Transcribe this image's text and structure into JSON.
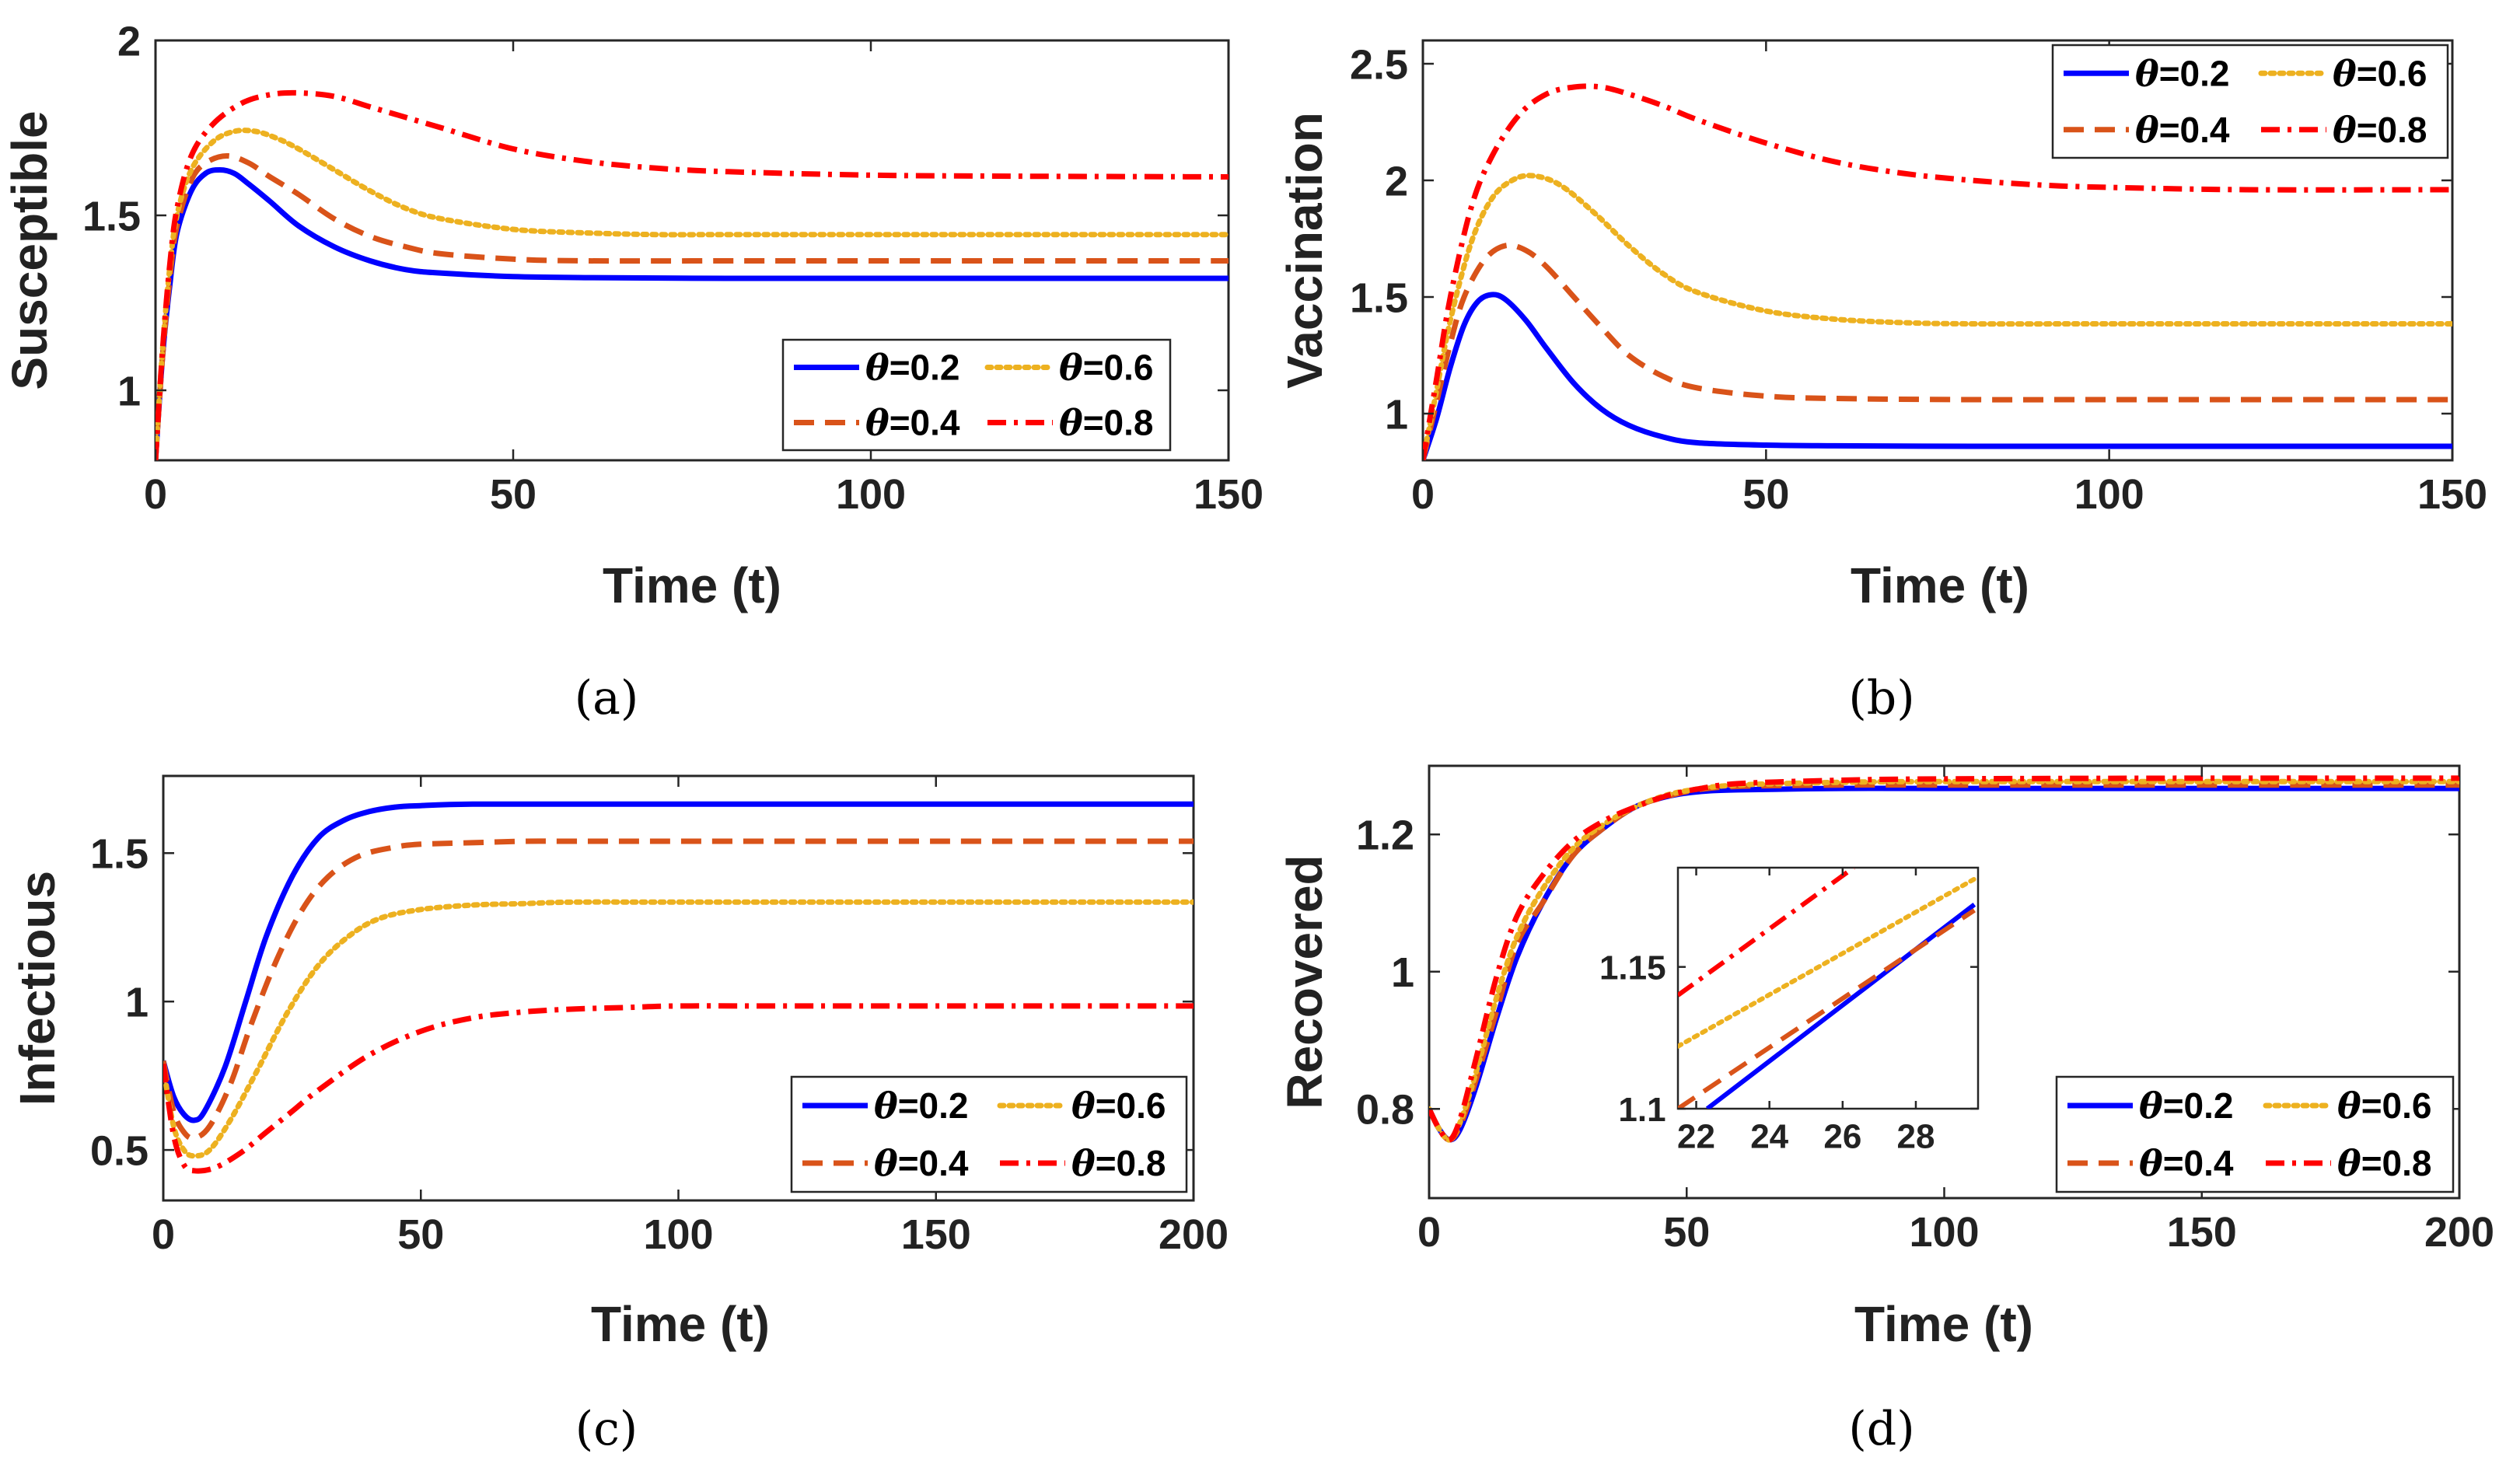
{
  "colors": {
    "0.2": "#0000ff",
    "0.4": "#d95319",
    "0.6": "#edb120",
    "0.8": "#ff0000",
    "axis": "#262626",
    "background": "#ffffff"
  },
  "legend": {
    "symbol": "θ",
    "entries": [
      {
        "key": "0.2",
        "label": "=0.2",
        "style": "solid"
      },
      {
        "key": "0.6",
        "label": "=0.6",
        "style": "dotted"
      },
      {
        "key": "0.4",
        "label": "=0.4",
        "style": "dashed"
      },
      {
        "key": "0.8",
        "label": "=0.8",
        "style": "dashdot"
      }
    ]
  },
  "chart_data": [
    {
      "id": "a",
      "type": "line",
      "caption": "(a)",
      "xlabel": "Time (t)",
      "ylabel": "Susceptible",
      "xlim": [
        0,
        150
      ],
      "ylim": [
        0.8,
        2.0
      ],
      "xticks": [
        0,
        50,
        100,
        150
      ],
      "yticks": [
        1,
        1.5,
        2
      ],
      "ytick_labels": [
        "1",
        "1.5",
        "2"
      ],
      "legend_position": "bottom-right",
      "series": [
        {
          "name": "θ=0.2",
          "key": "0.2",
          "style": "solid",
          "x": [
            0,
            1,
            2,
            3,
            5,
            7,
            9,
            11,
            13,
            16,
            20,
            25,
            30,
            35,
            40,
            50,
            60,
            80,
            100,
            150
          ],
          "y": [
            0.8,
            1.1,
            1.3,
            1.45,
            1.57,
            1.62,
            1.63,
            1.62,
            1.59,
            1.54,
            1.47,
            1.41,
            1.37,
            1.345,
            1.335,
            1.325,
            1.322,
            1.32,
            1.32,
            1.32
          ]
        },
        {
          "name": "θ=0.4",
          "key": "0.4",
          "style": "dashed",
          "x": [
            0,
            1,
            2,
            3,
            5,
            7,
            10,
            13,
            16,
            20,
            25,
            30,
            35,
            40,
            50,
            60,
            80,
            100,
            150
          ],
          "y": [
            0.8,
            1.1,
            1.32,
            1.47,
            1.6,
            1.65,
            1.67,
            1.65,
            1.61,
            1.56,
            1.49,
            1.44,
            1.41,
            1.39,
            1.375,
            1.37,
            1.37,
            1.37,
            1.37
          ]
        },
        {
          "name": "θ=0.6",
          "key": "0.6",
          "style": "dotted",
          "x": [
            0,
            1,
            2,
            3,
            5,
            8,
            11,
            14,
            17,
            20,
            25,
            30,
            35,
            40,
            50,
            60,
            70,
            80,
            100,
            150
          ],
          "y": [
            0.8,
            1.12,
            1.35,
            1.5,
            1.63,
            1.71,
            1.74,
            1.74,
            1.72,
            1.69,
            1.63,
            1.57,
            1.52,
            1.49,
            1.46,
            1.45,
            1.445,
            1.445,
            1.445,
            1.445
          ]
        },
        {
          "name": "θ=0.8",
          "key": "0.8",
          "style": "dashdot",
          "x": [
            0,
            1,
            2,
            3,
            5,
            8,
            12,
            16,
            20,
            25,
            30,
            35,
            40,
            50,
            60,
            70,
            80,
            100,
            120,
            150
          ],
          "y": [
            0.8,
            1.12,
            1.36,
            1.52,
            1.67,
            1.76,
            1.82,
            1.845,
            1.85,
            1.84,
            1.81,
            1.78,
            1.75,
            1.69,
            1.655,
            1.635,
            1.625,
            1.615,
            1.612,
            1.61
          ]
        }
      ]
    },
    {
      "id": "b",
      "type": "line",
      "caption": "(b)",
      "xlabel": "Time (t)",
      "ylabel": "Vaccination",
      "xlim": [
        0,
        150
      ],
      "ylim": [
        0.8,
        2.6
      ],
      "xticks": [
        0,
        50,
        100,
        150
      ],
      "yticks": [
        1,
        1.5,
        2,
        2.5
      ],
      "ytick_labels": [
        "1",
        "1.5",
        "2",
        "2.5"
      ],
      "legend_position": "top-right",
      "series": [
        {
          "name": "θ=0.2",
          "key": "0.2",
          "style": "solid",
          "x": [
            0,
            2,
            4,
            6,
            8,
            10,
            12,
            15,
            18,
            22,
            26,
            30,
            35,
            40,
            50,
            60,
            80,
            100,
            150
          ],
          "y": [
            0.8,
            0.98,
            1.2,
            1.38,
            1.48,
            1.51,
            1.49,
            1.4,
            1.28,
            1.13,
            1.02,
            0.95,
            0.9,
            0.875,
            0.865,
            0.862,
            0.86,
            0.86,
            0.86
          ]
        },
        {
          "name": "θ=0.4",
          "key": "0.4",
          "style": "dashed",
          "x": [
            0,
            2,
            4,
            6,
            9,
            12,
            15,
            18,
            22,
            26,
            30,
            35,
            40,
            50,
            60,
            80,
            100,
            150
          ],
          "y": [
            0.8,
            1.05,
            1.3,
            1.5,
            1.66,
            1.72,
            1.7,
            1.63,
            1.5,
            1.37,
            1.25,
            1.16,
            1.11,
            1.075,
            1.065,
            1.06,
            1.06,
            1.06
          ]
        },
        {
          "name": "θ=0.6",
          "key": "0.6",
          "style": "dotted",
          "x": [
            0,
            2,
            4,
            7,
            10,
            13,
            16,
            20,
            25,
            30,
            35,
            40,
            50,
            60,
            70,
            80,
            100,
            150
          ],
          "y": [
            0.8,
            1.1,
            1.4,
            1.73,
            1.92,
            2.0,
            2.02,
            1.98,
            1.86,
            1.72,
            1.6,
            1.52,
            1.44,
            1.405,
            1.39,
            1.385,
            1.385,
            1.385
          ]
        },
        {
          "name": "θ=0.8",
          "key": "0.8",
          "style": "dashdot",
          "x": [
            0,
            2,
            4,
            7,
            10,
            14,
            18,
            22,
            26,
            30,
            35,
            40,
            50,
            60,
            70,
            80,
            90,
            100,
            120,
            150
          ],
          "y": [
            0.8,
            1.15,
            1.5,
            1.88,
            2.1,
            2.28,
            2.37,
            2.4,
            2.4,
            2.37,
            2.32,
            2.26,
            2.16,
            2.08,
            2.03,
            2.0,
            1.98,
            1.97,
            1.96,
            1.96
          ]
        }
      ]
    },
    {
      "id": "c",
      "type": "line",
      "caption": "(c)",
      "xlabel": "Time (t)",
      "ylabel": "Infectious",
      "xlim": [
        0,
        200
      ],
      "ylim": [
        0.33,
        1.76
      ],
      "xticks": [
        0,
        50,
        100,
        150,
        200
      ],
      "yticks": [
        0.5,
        1,
        1.5
      ],
      "ytick_labels": [
        "0.5",
        "1",
        "1.5"
      ],
      "legend_position": "bottom-right",
      "series": [
        {
          "name": "θ=0.2",
          "key": "0.2",
          "style": "solid",
          "x": [
            0,
            2,
            4,
            6,
            8,
            12,
            16,
            20,
            25,
            30,
            35,
            40,
            45,
            50,
            60,
            80,
            100,
            150,
            200
          ],
          "y": [
            0.8,
            0.68,
            0.62,
            0.6,
            0.63,
            0.78,
            1.0,
            1.22,
            1.42,
            1.55,
            1.61,
            1.64,
            1.655,
            1.66,
            1.665,
            1.665,
            1.665,
            1.665,
            1.665
          ]
        },
        {
          "name": "θ=0.4",
          "key": "0.4",
          "style": "dashed",
          "x": [
            0,
            2,
            4,
            6,
            9,
            13,
            17,
            22,
            27,
            32,
            38,
            45,
            50,
            60,
            70,
            80,
            100,
            150,
            200
          ],
          "y": [
            0.8,
            0.63,
            0.56,
            0.54,
            0.58,
            0.72,
            0.92,
            1.14,
            1.31,
            1.42,
            1.49,
            1.52,
            1.53,
            1.535,
            1.54,
            1.54,
            1.54,
            1.54,
            1.54
          ]
        },
        {
          "name": "θ=0.6",
          "key": "0.6",
          "style": "dotted",
          "x": [
            0,
            2,
            4,
            6,
            9,
            13,
            18,
            24,
            30,
            36,
            42,
            50,
            60,
            70,
            80,
            100,
            150,
            200
          ],
          "y": [
            0.78,
            0.58,
            0.5,
            0.48,
            0.5,
            0.6,
            0.76,
            0.96,
            1.12,
            1.22,
            1.28,
            1.31,
            1.325,
            1.33,
            1.335,
            1.335,
            1.335,
            1.335
          ]
        },
        {
          "name": "θ=0.8",
          "key": "0.8",
          "style": "dashdot",
          "x": [
            0,
            2,
            4,
            6,
            10,
            15,
            20,
            25,
            30,
            40,
            50,
            60,
            70,
            80,
            90,
            100,
            120,
            150,
            200
          ],
          "y": [
            0.79,
            0.55,
            0.45,
            0.43,
            0.44,
            0.49,
            0.56,
            0.63,
            0.7,
            0.82,
            0.9,
            0.945,
            0.965,
            0.975,
            0.98,
            0.985,
            0.985,
            0.985,
            0.985
          ]
        }
      ]
    },
    {
      "id": "d",
      "type": "line",
      "caption": "(d)",
      "xlabel": "Time (t)",
      "ylabel": "Recovered",
      "xlim": [
        0,
        200
      ],
      "ylim": [
        0.67,
        1.3
      ],
      "xticks": [
        0,
        50,
        100,
        150,
        200
      ],
      "yticks": [
        0.8,
        1,
        1.2
      ],
      "ytick_labels": [
        "0.8",
        "1",
        "1.2"
      ],
      "legend_position": "bottom-right",
      "series": [
        {
          "name": "θ=0.2",
          "key": "0.2",
          "style": "solid",
          "x": [
            0,
            2,
            4,
            6,
            9,
            13,
            17,
            22,
            28,
            34,
            40,
            46,
            52,
            60,
            80,
            100,
            150,
            200
          ],
          "y": [
            0.8,
            0.77,
            0.755,
            0.77,
            0.83,
            0.93,
            1.02,
            1.1,
            1.17,
            1.21,
            1.24,
            1.255,
            1.262,
            1.265,
            1.267,
            1.267,
            1.267,
            1.267
          ]
        },
        {
          "name": "θ=0.4",
          "key": "0.4",
          "style": "dashed",
          "x": [
            0,
            2,
            4,
            6,
            9,
            13,
            17,
            22,
            28,
            34,
            40,
            46,
            52,
            60,
            80,
            100,
            150,
            200
          ],
          "y": [
            0.8,
            0.77,
            0.755,
            0.775,
            0.84,
            0.94,
            1.04,
            1.1,
            1.17,
            1.21,
            1.24,
            1.255,
            1.265,
            1.27,
            1.272,
            1.272,
            1.272,
            1.272
          ]
        },
        {
          "name": "θ=0.6",
          "key": "0.6",
          "style": "dotted",
          "x": [
            0,
            2,
            4,
            6,
            9,
            13,
            17,
            22,
            28,
            34,
            40,
            46,
            52,
            60,
            80,
            100,
            150,
            200
          ],
          "y": [
            0.8,
            0.77,
            0.755,
            0.78,
            0.85,
            0.96,
            1.05,
            1.12,
            1.18,
            1.215,
            1.24,
            1.257,
            1.266,
            1.272,
            1.276,
            1.277,
            1.277,
            1.277
          ]
        },
        {
          "name": "θ=0.8",
          "key": "0.8",
          "style": "dashdot",
          "x": [
            0,
            2,
            4,
            6,
            9,
            13,
            17,
            22,
            28,
            34,
            40,
            46,
            52,
            60,
            80,
            100,
            150,
            200
          ],
          "y": [
            0.8,
            0.77,
            0.755,
            0.785,
            0.87,
            0.99,
            1.08,
            1.14,
            1.19,
            1.22,
            1.24,
            1.256,
            1.266,
            1.274,
            1.279,
            1.281,
            1.282,
            1.282
          ]
        }
      ],
      "inset": {
        "xlim": [
          21.5,
          29.7
        ],
        "ylim": [
          1.1,
          1.185
        ],
        "xticks": [
          22,
          24,
          26,
          28
        ],
        "yticks": [
          1.1,
          1.15
        ],
        "ytick_labels": [
          "1.1",
          "1.15"
        ],
        "series": [
          {
            "key": "0.2",
            "style": "solid",
            "x": [
              22.3,
              29.6
            ],
            "y": [
              1.1,
              1.172
            ]
          },
          {
            "key": "0.4",
            "style": "dashed",
            "x": [
              21.5,
              29.6
            ],
            "y": [
              1.1,
              1.17
            ]
          },
          {
            "key": "0.6",
            "style": "dotted",
            "x": [
              21.5,
              29.6
            ],
            "y": [
              1.122,
              1.181
            ]
          },
          {
            "key": "0.8",
            "style": "dashdot",
            "x": [
              21.5,
              26.3
            ],
            "y": [
              1.14,
              1.185
            ]
          }
        ]
      }
    }
  ]
}
